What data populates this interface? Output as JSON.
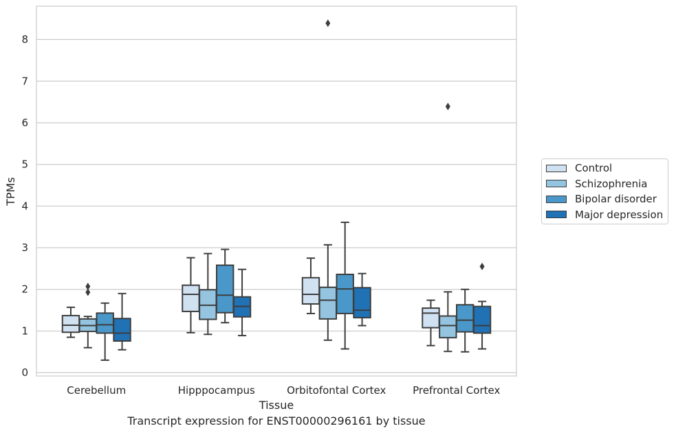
{
  "chart_data": {
    "type": "box",
    "caption": "Transcript expression for ENST00000296161 by tissue",
    "xlabel": "Tissue",
    "ylabel": "TPMs",
    "ylim": [
      -0.08,
      8.8
    ],
    "yticks": [
      0,
      1,
      2,
      3,
      4,
      5,
      6,
      7,
      8
    ],
    "grid": true,
    "legend_position": "right",
    "categories": [
      "Cerebellum",
      "Hipppocampus",
      "Orbitofontal Cortex",
      "Prefrontal Cortex"
    ],
    "series": [
      {
        "name": "Control",
        "color": "#d0e1f2",
        "boxes": [
          {
            "min": 0.85,
            "q1": 0.97,
            "median": 1.14,
            "q3": 1.37,
            "max": 1.57,
            "outliers": []
          },
          {
            "min": 0.96,
            "q1": 1.47,
            "median": 1.88,
            "q3": 2.1,
            "max": 2.76,
            "outliers": []
          },
          {
            "min": 1.42,
            "q1": 1.65,
            "median": 1.88,
            "q3": 2.28,
            "max": 2.75,
            "outliers": []
          },
          {
            "min": 0.65,
            "q1": 1.08,
            "median": 1.43,
            "q3": 1.55,
            "max": 1.74,
            "outliers": []
          }
        ]
      },
      {
        "name": "Schizophrenia",
        "color": "#94c4df",
        "boxes": [
          {
            "min": 0.6,
            "q1": 0.99,
            "median": 1.13,
            "q3": 1.29,
            "max": 1.35,
            "outliers": [
              1.93,
              2.07
            ]
          },
          {
            "min": 0.92,
            "q1": 1.28,
            "median": 1.62,
            "q3": 1.99,
            "max": 2.86,
            "outliers": []
          },
          {
            "min": 0.78,
            "q1": 1.29,
            "median": 1.74,
            "q3": 2.05,
            "max": 3.07,
            "outliers": [
              8.39
            ]
          },
          {
            "min": 0.51,
            "q1": 0.84,
            "median": 1.13,
            "q3": 1.36,
            "max": 1.94,
            "outliers": [
              6.39
            ]
          }
        ]
      },
      {
        "name": "Bipolar disorder",
        "color": "#4a98c9",
        "boxes": [
          {
            "min": 0.3,
            "q1": 0.95,
            "median": 1.15,
            "q3": 1.43,
            "max": 1.67,
            "outliers": []
          },
          {
            "min": 1.2,
            "q1": 1.44,
            "median": 1.86,
            "q3": 2.58,
            "max": 2.96,
            "outliers": []
          },
          {
            "min": 0.57,
            "q1": 1.42,
            "median": 2.01,
            "q3": 2.36,
            "max": 3.61,
            "outliers": []
          },
          {
            "min": 0.5,
            "q1": 0.98,
            "median": 1.26,
            "q3": 1.63,
            "max": 2.0,
            "outliers": []
          }
        ]
      },
      {
        "name": "Major depression",
        "color": "#2171b5",
        "boxes": [
          {
            "min": 0.55,
            "q1": 0.76,
            "median": 0.95,
            "q3": 1.3,
            "max": 1.9,
            "outliers": []
          },
          {
            "min": 0.89,
            "q1": 1.34,
            "median": 1.59,
            "q3": 1.82,
            "max": 2.48,
            "outliers": []
          },
          {
            "min": 1.13,
            "q1": 1.32,
            "median": 1.5,
            "q3": 2.04,
            "max": 2.38,
            "outliers": []
          },
          {
            "min": 0.57,
            "q1": 0.95,
            "median": 1.13,
            "q3": 1.59,
            "max": 1.71,
            "outliers": [
              2.55
            ]
          }
        ]
      }
    ]
  }
}
